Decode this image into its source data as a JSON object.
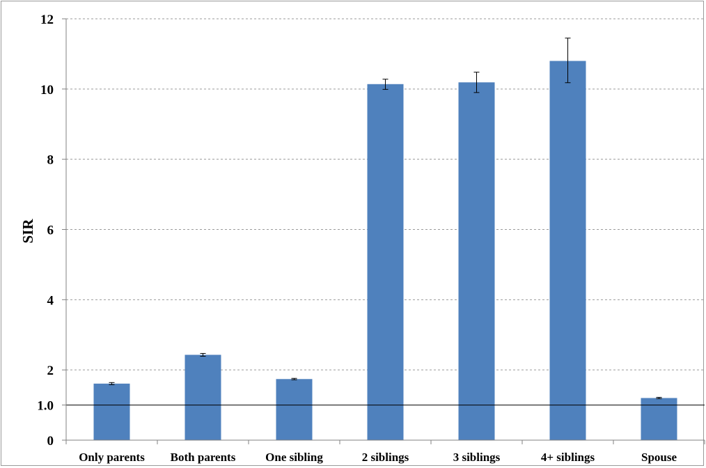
{
  "chart_data": {
    "type": "bar",
    "title": "",
    "xlabel": "",
    "ylabel": "SIR",
    "ylim": [
      0,
      12
    ],
    "y_ticks": [
      "0",
      "1.0",
      "2",
      "4",
      "6",
      "8",
      "10",
      "12"
    ],
    "y_tick_values": [
      0,
      1,
      2,
      4,
      6,
      8,
      10,
      12
    ],
    "gridlines": "dashed horizontal",
    "reference_line": 1.0,
    "categories": [
      "Only parents",
      "Both parents",
      "One sibling",
      "2 siblings",
      "3 siblings",
      "4+ siblings",
      "Spouse"
    ],
    "values": [
      1.61,
      2.43,
      1.74,
      10.14,
      10.19,
      10.8,
      1.2
    ],
    "error_low": [
      1.58,
      2.39,
      1.72,
      9.99,
      9.9,
      10.18,
      1.18
    ],
    "error_high": [
      1.64,
      2.47,
      1.76,
      10.28,
      10.48,
      11.45,
      1.22
    ],
    "bar_color": "#4f81bd"
  }
}
